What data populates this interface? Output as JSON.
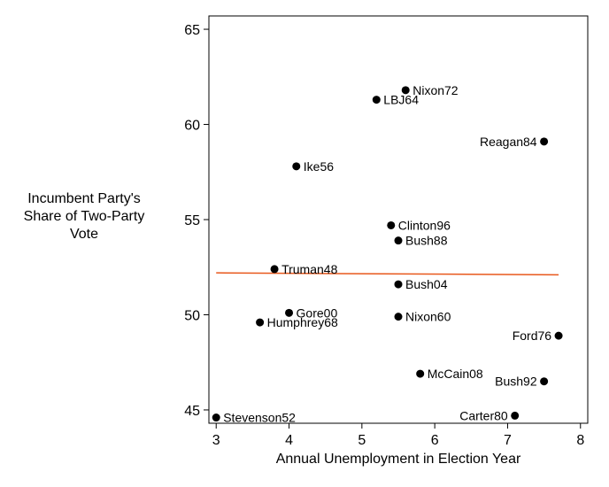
{
  "chart_data": {
    "type": "scatter",
    "title": "",
    "xlabel": "Annual Unemployment in Election Year",
    "ylabel_lines": [
      "Incumbent Party's",
      "Share of Two-Party",
      "Vote"
    ],
    "xlim": [
      2.9,
      8.1
    ],
    "ylim": [
      44.3,
      65.7
    ],
    "xticks": [
      3,
      4,
      5,
      6,
      7,
      8
    ],
    "yticks": [
      45,
      50,
      55,
      60,
      65
    ],
    "grid": false,
    "point_color": "#000000",
    "fit_line_color": "#e8581c",
    "points": [
      {
        "label": "Nixon72",
        "x": 5.6,
        "y": 61.8,
        "anchor": "right"
      },
      {
        "label": "LBJ64",
        "x": 5.2,
        "y": 61.3,
        "anchor": "right"
      },
      {
        "label": "Reagan84",
        "x": 7.5,
        "y": 59.1,
        "anchor": "left"
      },
      {
        "label": "Ike56",
        "x": 4.1,
        "y": 57.8,
        "anchor": "right"
      },
      {
        "label": "Clinton96",
        "x": 5.4,
        "y": 54.7,
        "anchor": "right"
      },
      {
        "label": "Bush88",
        "x": 5.5,
        "y": 53.9,
        "anchor": "right"
      },
      {
        "label": "Truman48",
        "x": 3.8,
        "y": 52.4,
        "anchor": "right"
      },
      {
        "label": "Bush04",
        "x": 5.5,
        "y": 51.6,
        "anchor": "right"
      },
      {
        "label": "Gore00",
        "x": 4.0,
        "y": 50.1,
        "anchor": "right"
      },
      {
        "label": "Humphrey68",
        "x": 3.6,
        "y": 49.6,
        "anchor": "right"
      },
      {
        "label": "Nixon60",
        "x": 5.5,
        "y": 49.9,
        "anchor": "right"
      },
      {
        "label": "Ford76",
        "x": 7.7,
        "y": 48.9,
        "anchor": "left"
      },
      {
        "label": "McCain08",
        "x": 5.8,
        "y": 46.9,
        "anchor": "right"
      },
      {
        "label": "Bush92",
        "x": 7.5,
        "y": 46.5,
        "anchor": "left"
      },
      {
        "label": "Carter80",
        "x": 7.1,
        "y": 44.7,
        "anchor": "left"
      },
      {
        "label": "Stevenson52",
        "x": 3.0,
        "y": 44.6,
        "anchor": "right"
      }
    ],
    "fit_line": {
      "x": [
        3.0,
        7.7
      ],
      "y": [
        52.2,
        52.1
      ]
    }
  }
}
